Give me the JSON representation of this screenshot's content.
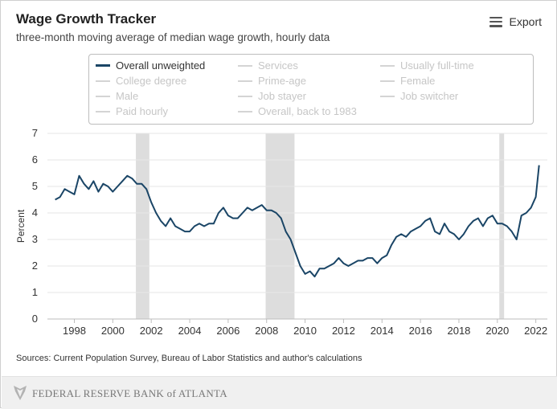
{
  "header": {
    "title": "Wage Growth Tracker",
    "subtitle": "three-month moving average of median wage growth, hourly data",
    "export_label": "Export"
  },
  "legend": {
    "items": [
      {
        "label": "Overall unweighted",
        "active": true
      },
      {
        "label": "Services",
        "active": false
      },
      {
        "label": "Usually full-time",
        "active": false
      },
      {
        "label": "College degree",
        "active": false
      },
      {
        "label": "Prime-age",
        "active": false
      },
      {
        "label": "Female",
        "active": false
      },
      {
        "label": "Male",
        "active": false
      },
      {
        "label": "Job stayer",
        "active": false
      },
      {
        "label": "Job switcher",
        "active": false
      },
      {
        "label": "Paid hourly",
        "active": false
      },
      {
        "label": "Overall, back to 1983",
        "active": false
      }
    ]
  },
  "footer": {
    "sources": "Sources: Current Population Survey, Bureau of Labor Statistics and author's calculations",
    "org": "FEDERAL RESERVE BANK of ATLANTA"
  },
  "colors": {
    "series": "#1a4566",
    "recession": "#dddddd",
    "grid": "#e6e6e6"
  },
  "chart_data": {
    "type": "line",
    "ylabel": "Percent",
    "ylim": [
      0,
      7
    ],
    "xlim": [
      1996.6,
      2022.6
    ],
    "yticks": [
      "0",
      "1",
      "2",
      "3",
      "4",
      "5",
      "6",
      "7"
    ],
    "xticks": [
      "1998",
      "2000",
      "2002",
      "2004",
      "2006",
      "2008",
      "2010",
      "2012",
      "2014",
      "2016",
      "2018",
      "2020",
      "2022"
    ],
    "recessions": [
      [
        2001.2,
        2001.9
      ],
      [
        2007.95,
        2009.45
      ],
      [
        2020.1,
        2020.35
      ]
    ],
    "series": [
      {
        "name": "Overall unweighted",
        "x": [
          1997.0,
          1997.25,
          1997.5,
          1997.75,
          1998.0,
          1998.25,
          1998.5,
          1998.75,
          1999.0,
          1999.25,
          1999.5,
          1999.75,
          2000.0,
          2000.25,
          2000.5,
          2000.75,
          2001.0,
          2001.25,
          2001.5,
          2001.75,
          2002.0,
          2002.25,
          2002.5,
          2002.75,
          2003.0,
          2003.25,
          2003.5,
          2003.75,
          2004.0,
          2004.25,
          2004.5,
          2004.75,
          2005.0,
          2005.25,
          2005.5,
          2005.75,
          2006.0,
          2006.25,
          2006.5,
          2006.75,
          2007.0,
          2007.25,
          2007.5,
          2007.75,
          2008.0,
          2008.25,
          2008.5,
          2008.75,
          2009.0,
          2009.25,
          2009.5,
          2009.75,
          2010.0,
          2010.25,
          2010.5,
          2010.75,
          2011.0,
          2011.25,
          2011.5,
          2011.75,
          2012.0,
          2012.25,
          2012.5,
          2012.75,
          2013.0,
          2013.25,
          2013.5,
          2013.75,
          2014.0,
          2014.25,
          2014.5,
          2014.75,
          2015.0,
          2015.25,
          2015.5,
          2015.75,
          2016.0,
          2016.25,
          2016.5,
          2016.75,
          2017.0,
          2017.25,
          2017.5,
          2017.75,
          2018.0,
          2018.25,
          2018.5,
          2018.75,
          2019.0,
          2019.25,
          2019.5,
          2019.75,
          2020.0,
          2020.25,
          2020.5,
          2020.75,
          2021.0,
          2021.25,
          2021.5,
          2021.75,
          2022.0,
          2022.17
        ],
        "values": [
          4.5,
          4.6,
          4.9,
          4.8,
          4.7,
          5.4,
          5.1,
          4.9,
          5.2,
          4.8,
          5.1,
          5.0,
          4.8,
          5.0,
          5.2,
          5.4,
          5.3,
          5.1,
          5.1,
          4.9,
          4.4,
          4.0,
          3.7,
          3.5,
          3.8,
          3.5,
          3.4,
          3.3,
          3.3,
          3.5,
          3.6,
          3.5,
          3.6,
          3.6,
          4.0,
          4.2,
          3.9,
          3.8,
          3.8,
          4.0,
          4.2,
          4.1,
          4.2,
          4.3,
          4.1,
          4.1,
          4.0,
          3.8,
          3.3,
          3.0,
          2.5,
          2.0,
          1.7,
          1.8,
          1.6,
          1.9,
          1.9,
          2.0,
          2.1,
          2.3,
          2.1,
          2.0,
          2.1,
          2.2,
          2.2,
          2.3,
          2.3,
          2.1,
          2.3,
          2.4,
          2.8,
          3.1,
          3.2,
          3.1,
          3.3,
          3.4,
          3.5,
          3.7,
          3.8,
          3.3,
          3.2,
          3.6,
          3.3,
          3.2,
          3.0,
          3.2,
          3.5,
          3.7,
          3.8,
          3.5,
          3.8,
          3.9,
          3.6,
          3.6,
          3.5,
          3.3,
          3.0,
          3.9,
          4.0,
          4.2,
          4.6,
          5.8
        ]
      }
    ]
  }
}
